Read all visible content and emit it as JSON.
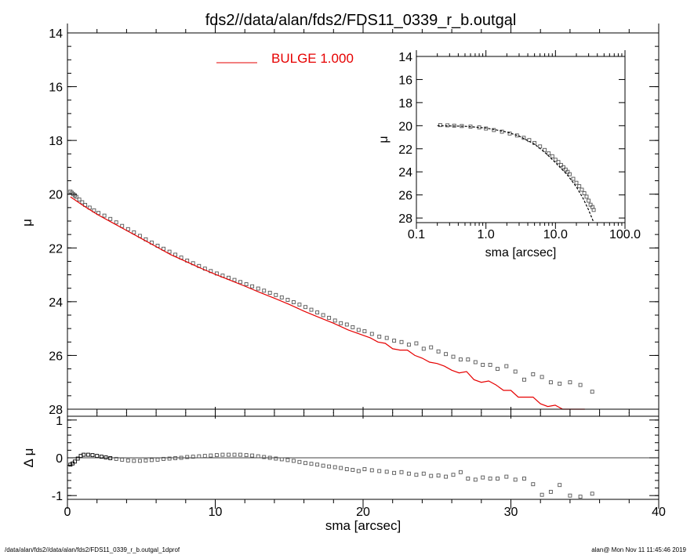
{
  "chart_data": [
    {
      "type": "scatter",
      "id": "main",
      "title": "fds2//data/alan/fds2/FDS11_0339_r_b.outgal",
      "xlabel": "",
      "ylabel": "μ",
      "xlim": [
        0,
        40
      ],
      "ylim": [
        28,
        14
      ],
      "y_inverted": true,
      "y_ticks": [
        "14",
        "16",
        "18",
        "20",
        "22",
        "24",
        "26",
        "28"
      ],
      "legend": {
        "label": "BULGE  1.000",
        "color": "#e60000",
        "placement": "top-center"
      },
      "series": [
        {
          "kind": "points",
          "color": "#555555",
          "x": [
            0.2,
            0.3,
            0.4,
            0.5,
            0.6,
            0.8,
            1.0,
            1.2,
            1.5,
            1.8,
            2.1,
            2.5,
            2.9,
            3.3,
            3.7,
            4.1,
            4.5,
            4.9,
            5.3,
            5.7,
            6.1,
            6.5,
            6.9,
            7.3,
            7.7,
            8.1,
            8.5,
            8.9,
            9.3,
            9.7,
            10.1,
            10.5,
            10.9,
            11.3,
            11.7,
            12.1,
            12.5,
            12.9,
            13.3,
            13.7,
            14.1,
            14.5,
            14.9,
            15.3,
            15.7,
            16.1,
            16.5,
            16.9,
            17.3,
            17.7,
            18.1,
            18.5,
            18.9,
            19.3,
            19.7,
            20.1,
            20.6,
            21.1,
            21.6,
            22.1,
            22.6,
            23.1,
            23.6,
            24.1,
            24.6,
            25.1,
            25.6,
            26.1,
            26.6,
            27.1,
            27.6,
            28.1,
            28.6,
            29.1,
            29.7,
            30.3,
            30.9,
            31.5,
            32.1,
            32.7,
            33.3,
            34.0,
            34.7,
            35.5
          ],
          "y": [
            19.9,
            19.95,
            20.0,
            20.05,
            20.1,
            20.2,
            20.3,
            20.4,
            20.5,
            20.6,
            20.7,
            20.8,
            20.92,
            21.05,
            21.18,
            21.3,
            21.42,
            21.55,
            21.68,
            21.8,
            21.92,
            22.03,
            22.14,
            22.25,
            22.36,
            22.47,
            22.57,
            22.67,
            22.77,
            22.86,
            22.95,
            23.03,
            23.11,
            23.19,
            23.27,
            23.35,
            23.43,
            23.51,
            23.59,
            23.67,
            23.75,
            23.84,
            23.93,
            24.02,
            24.11,
            24.2,
            24.3,
            24.4,
            24.5,
            24.6,
            24.7,
            24.8,
            24.85,
            24.95,
            25.05,
            25.1,
            25.2,
            25.3,
            25.35,
            25.45,
            25.5,
            25.6,
            25.55,
            25.75,
            25.7,
            25.85,
            25.95,
            26.05,
            26.15,
            26.15,
            26.25,
            26.35,
            26.35,
            26.5,
            26.4,
            26.6,
            26.9,
            26.7,
            26.8,
            27.0,
            27.05,
            27.0,
            27.1,
            27.35
          ]
        },
        {
          "kind": "line",
          "color": "#e60000",
          "x": [
            0.2,
            1.0,
            2.0,
            3.0,
            4.0,
            5.0,
            6.0,
            7.0,
            8.0,
            9.0,
            10.0,
            11.0,
            12.0,
            13.0,
            14.0,
            15.0,
            16.0,
            17.0,
            18.0,
            19.0,
            20.0,
            20.5,
            21.0,
            21.5,
            22.0,
            22.5,
            23.0,
            23.5,
            24.0,
            24.5,
            25.0,
            25.5,
            26.0,
            26.5,
            27.0,
            27.5,
            28.0,
            28.5,
            29.0,
            29.5,
            30.0,
            30.5,
            31.0,
            31.5,
            32.0,
            32.5,
            33.0,
            33.5,
            34.0,
            34.5,
            35.0
          ],
          "y": [
            20.1,
            20.4,
            20.75,
            21.05,
            21.35,
            21.65,
            21.95,
            22.25,
            22.5,
            22.75,
            22.98,
            23.2,
            23.42,
            23.65,
            23.87,
            24.1,
            24.35,
            24.58,
            24.8,
            25.05,
            25.25,
            25.35,
            25.5,
            25.55,
            25.75,
            25.8,
            25.8,
            26.0,
            26.1,
            26.25,
            26.3,
            26.4,
            26.55,
            26.65,
            26.6,
            26.9,
            27.0,
            26.95,
            27.1,
            27.3,
            27.3,
            27.55,
            27.55,
            27.55,
            27.8,
            27.9,
            27.85,
            28.0,
            28.1,
            28.2,
            28.3
          ]
        }
      ]
    },
    {
      "type": "scatter",
      "id": "inset",
      "xlabel": "sma [arcsec]",
      "ylabel": "μ",
      "x_scale": "log",
      "xlim": [
        0.1,
        100
      ],
      "ylim": [
        28.4,
        14
      ],
      "y_inverted": true,
      "x_ticks": [
        "0.1",
        "1.0",
        "10.0",
        "100.0"
      ],
      "y_ticks": [
        "14",
        "16",
        "18",
        "20",
        "22",
        "24",
        "26",
        "28"
      ],
      "series": [
        {
          "kind": "points",
          "color": "#555555",
          "x": [
            0.22,
            0.28,
            0.35,
            0.45,
            0.6,
            0.8,
            1.0,
            1.3,
            1.7,
            2.2,
            2.8,
            3.5,
            4.2,
            5.0,
            6.0,
            7.0,
            8.0,
            9.0,
            10.0,
            11.0,
            12.0,
            13.0,
            14.0,
            15.0,
            16.0,
            18.0,
            20.0,
            22.0,
            24.0,
            26.0,
            28.0,
            30.0,
            32.0,
            34.0,
            35.5
          ],
          "y": [
            19.95,
            19.97,
            20.0,
            20.03,
            20.08,
            20.15,
            20.25,
            20.38,
            20.52,
            20.68,
            20.85,
            21.05,
            21.25,
            21.5,
            21.8,
            22.1,
            22.4,
            22.65,
            22.95,
            23.15,
            23.4,
            23.6,
            23.8,
            24.0,
            24.2,
            24.6,
            24.95,
            25.25,
            25.55,
            25.85,
            26.15,
            26.5,
            26.85,
            27.05,
            27.3
          ]
        },
        {
          "kind": "line",
          "color": "#000000",
          "dashed": true,
          "x": [
            0.2,
            0.5,
            1.0,
            2.0,
            3.0,
            5.0,
            7.0,
            10.0,
            15.0,
            20.0,
            25.0,
            30.0,
            35.0
          ],
          "y": [
            20.0,
            20.05,
            20.2,
            20.55,
            20.9,
            21.6,
            22.3,
            23.2,
            24.3,
            25.3,
            26.3,
            27.3,
            28.3
          ]
        }
      ]
    },
    {
      "type": "scatter",
      "id": "residual",
      "xlabel": "sma [arcsec]",
      "ylabel": "Δ μ",
      "xlim": [
        0,
        40
      ],
      "ylim": [
        -1.1,
        1.1
      ],
      "x_ticks": [
        "0",
        "10",
        "20",
        "30",
        "40"
      ],
      "y_ticks": [
        "1",
        "0",
        "-1"
      ],
      "zero_line": true,
      "series": [
        {
          "kind": "points",
          "color": "#000000",
          "x": [
            0.2,
            0.35,
            0.5,
            0.7,
            0.9,
            1.1,
            1.4,
            1.7,
            2.0,
            2.3,
            2.6,
            2.9
          ],
          "y": [
            -0.18,
            -0.15,
            -0.1,
            -0.02,
            0.05,
            0.08,
            0.08,
            0.07,
            0.05,
            0.03,
            0.01,
            -0.01
          ]
        },
        {
          "kind": "points",
          "color": "#555555",
          "x": [
            3.3,
            3.7,
            4.1,
            4.5,
            4.9,
            5.3,
            5.7,
            6.1,
            6.5,
            6.9,
            7.3,
            7.7,
            8.1,
            8.5,
            8.9,
            9.3,
            9.7,
            10.1,
            10.5,
            10.9,
            11.3,
            11.7,
            12.1,
            12.5,
            12.9,
            13.3,
            13.7,
            14.1,
            14.5,
            14.9,
            15.3,
            15.7,
            16.1,
            16.5,
            16.9,
            17.3,
            17.7,
            18.1,
            18.5,
            18.9,
            19.3,
            19.7,
            20.1,
            20.6,
            21.1,
            21.6,
            22.1,
            22.6,
            23.1,
            23.6,
            24.1,
            24.6,
            25.1,
            25.6,
            26.1,
            26.6,
            27.1,
            27.6,
            28.1,
            28.6,
            29.1,
            29.7,
            30.3,
            30.9,
            31.5,
            32.1,
            32.7,
            33.3,
            34.0,
            34.7,
            35.5
          ],
          "y": [
            -0.03,
            -0.05,
            -0.07,
            -0.08,
            -0.08,
            -0.07,
            -0.06,
            -0.05,
            -0.03,
            -0.02,
            -0.01,
            0.0,
            0.02,
            0.03,
            0.04,
            0.05,
            0.06,
            0.07,
            0.08,
            0.08,
            0.08,
            0.08,
            0.07,
            0.06,
            0.04,
            0.02,
            0.0,
            -0.02,
            -0.04,
            -0.06,
            -0.08,
            -0.11,
            -0.14,
            -0.16,
            -0.18,
            -0.21,
            -0.23,
            -0.25,
            -0.27,
            -0.3,
            -0.32,
            -0.35,
            -0.3,
            -0.33,
            -0.35,
            -0.37,
            -0.4,
            -0.38,
            -0.42,
            -0.45,
            -0.42,
            -0.48,
            -0.47,
            -0.5,
            -0.45,
            -0.38,
            -0.55,
            -0.58,
            -0.52,
            -0.55,
            -0.55,
            -0.5,
            -0.58,
            -0.55,
            -0.7,
            -0.98,
            -0.9,
            -0.72,
            -1.0,
            -1.03,
            -0.95
          ]
        }
      ]
    }
  ],
  "footer": {
    "left": "/data/alan/fds2//data/alan/fds2/FDS11_0339_r_b.outgal_1dprof",
    "right": "alan@  Mon Nov 11 11:45:46 2019"
  }
}
